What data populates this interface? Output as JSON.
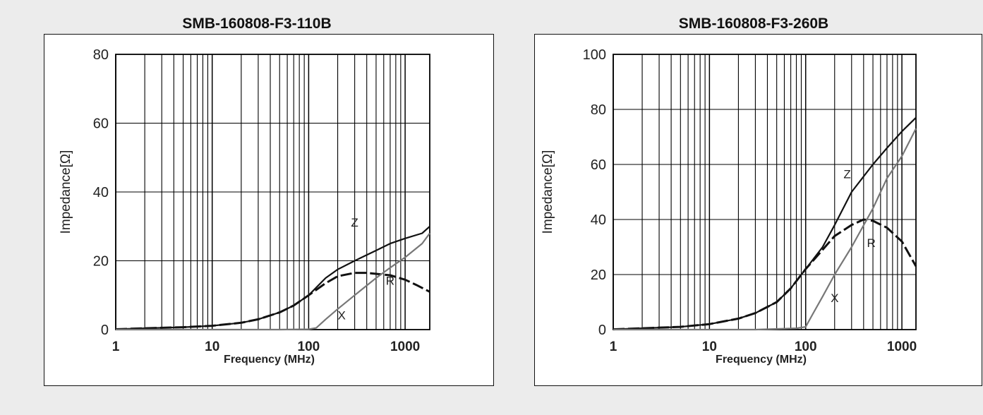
{
  "chart_data": [
    {
      "type": "line",
      "title": "SMB-160808-F3-110B",
      "xlabel": "Frequency (MHz)",
      "ylabel": "Impedance[Ω]",
      "xscale": "log",
      "xlim": [
        1,
        1800
      ],
      "ylim": [
        0,
        80
      ],
      "yticks": [
        0,
        20,
        40,
        60,
        80
      ],
      "xticks": [
        1,
        10,
        100,
        1000
      ],
      "xtick_labels": [
        "1",
        "10",
        "100",
        "1000"
      ],
      "ytick_labels": [
        "0",
        "20",
        "40",
        "60",
        "80"
      ],
      "grid": true,
      "series": [
        {
          "name": "Z",
          "color": "#111111",
          "dashed": false,
          "x": [
            1,
            2,
            5,
            10,
            20,
            30,
            50,
            70,
            100,
            150,
            200,
            300,
            500,
            700,
            1000,
            1500,
            1800
          ],
          "y": [
            0.1,
            0.4,
            0.7,
            1.1,
            2,
            3,
            5,
            7,
            10,
            15,
            17.5,
            20,
            23,
            25,
            26.5,
            28,
            30
          ]
        },
        {
          "name": "R",
          "color": "#111111",
          "dashed": true,
          "x": [
            1,
            2,
            5,
            10,
            20,
            30,
            50,
            70,
            100,
            150,
            200,
            300,
            400,
            500,
            700,
            1000,
            1300,
            1800
          ],
          "y": [
            0.1,
            0.4,
            0.7,
            1.1,
            2,
            3,
            5,
            7,
            10,
            13.5,
            15.5,
            16.5,
            16.5,
            16.2,
            15.8,
            14.5,
            13,
            11
          ]
        },
        {
          "name": "X",
          "color": "#777777",
          "dashed": false,
          "x": [
            1,
            10,
            50,
            100,
            120,
            150,
            200,
            300,
            500,
            700,
            1000,
            1500,
            1800
          ],
          "y": [
            0,
            0,
            0,
            0.1,
            0.5,
            3,
            6,
            10,
            15,
            18,
            21,
            25,
            28
          ]
        }
      ],
      "annotations": [
        {
          "text": "Z",
          "x": 300,
          "y": 30
        },
        {
          "text": "R",
          "x": 700,
          "y": 13
        },
        {
          "text": "X",
          "x": 220,
          "y": 3
        }
      ]
    },
    {
      "type": "line",
      "title": "SMB-160808-F3-260B",
      "xlabel": "Frequency (MHz)",
      "ylabel": "Impedance[Ω]",
      "xscale": "log",
      "xlim": [
        1,
        1400
      ],
      "ylim": [
        0,
        100
      ],
      "yticks": [
        0,
        20,
        40,
        60,
        80,
        100
      ],
      "xticks": [
        1,
        10,
        100,
        1000
      ],
      "xtick_labels": [
        "1",
        "10",
        "100",
        "1000"
      ],
      "ytick_labels": [
        "0",
        "20",
        "40",
        "60",
        "80",
        "100"
      ],
      "grid": true,
      "series": [
        {
          "name": "Z",
          "color": "#111111",
          "dashed": false,
          "x": [
            1,
            2,
            5,
            10,
            20,
            30,
            50,
            70,
            100,
            150,
            200,
            300,
            500,
            700,
            1000,
            1400
          ],
          "y": [
            0.1,
            0.5,
            1,
            2,
            4,
            6,
            10,
            15,
            22,
            30,
            38,
            50,
            60,
            66,
            72,
            77
          ]
        },
        {
          "name": "R",
          "color": "#111111",
          "dashed": true,
          "x": [
            1,
            2,
            5,
            10,
            20,
            30,
            50,
            70,
            100,
            150,
            200,
            300,
            400,
            500,
            700,
            1000,
            1400
          ],
          "y": [
            0.1,
            0.5,
            1,
            2,
            4,
            6,
            10,
            15,
            22,
            29,
            34,
            38,
            40,
            39.5,
            37,
            32,
            23
          ]
        },
        {
          "name": "X",
          "color": "#777777",
          "dashed": false,
          "x": [
            1,
            10,
            30,
            80,
            100,
            120,
            150,
            200,
            300,
            500,
            700,
            1000,
            1400
          ],
          "y": [
            0,
            0,
            0,
            0.5,
            1,
            6,
            12,
            20,
            30,
            44,
            55,
            63,
            73
          ]
        }
      ],
      "annotations": [
        {
          "text": "Z",
          "x": 270,
          "y": 55
        },
        {
          "text": "R",
          "x": 480,
          "y": 30
        },
        {
          "text": "X",
          "x": 200,
          "y": 10
        }
      ]
    }
  ]
}
